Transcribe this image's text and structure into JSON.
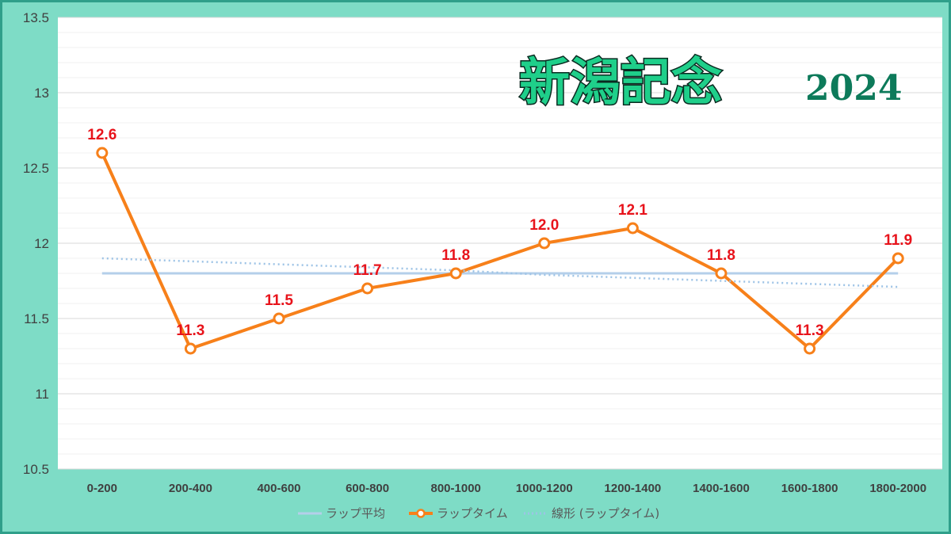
{
  "title": {
    "main": "新潟記念",
    "year": "2024"
  },
  "colors": {
    "lap": "#f7801a",
    "average": "#b4cfea",
    "trend": "#9dc3e6",
    "labels": "#e8131b",
    "background": "#7edcc6"
  },
  "chart_data": {
    "type": "line",
    "categories": [
      "0-200",
      "200-400",
      "400-600",
      "600-800",
      "800-1000",
      "1000-1200",
      "1200-1400",
      "1400-1600",
      "1600-1800",
      "1800-2000"
    ],
    "ylim": [
      10.5,
      13.5
    ],
    "yticks": [
      "10.5",
      "11",
      "11.5",
      "12",
      "12.5",
      "13",
      "13.5"
    ],
    "grid": true,
    "legend_position": "bottom",
    "series": [
      {
        "name": "ラップ平均",
        "style": "solid-line",
        "values": [
          11.8,
          11.8,
          11.8,
          11.8,
          11.8,
          11.8,
          11.8,
          11.8,
          11.8,
          11.8
        ]
      },
      {
        "name": "ラップタイム",
        "style": "line-with-markers",
        "values": [
          12.6,
          11.3,
          11.5,
          11.7,
          11.8,
          12.0,
          12.1,
          11.8,
          11.3,
          11.9
        ],
        "data_labels": [
          "12.6",
          "11.3",
          "11.5",
          "11.7",
          "11.8",
          "12.0",
          "12.1",
          "11.8",
          "11.3",
          "11.9"
        ]
      },
      {
        "name": "線形 (ラップタイム)",
        "style": "dotted-line",
        "values": [
          11.9,
          11.88,
          11.86,
          11.84,
          11.82,
          11.79,
          11.77,
          11.75,
          11.73,
          11.71
        ]
      }
    ]
  }
}
